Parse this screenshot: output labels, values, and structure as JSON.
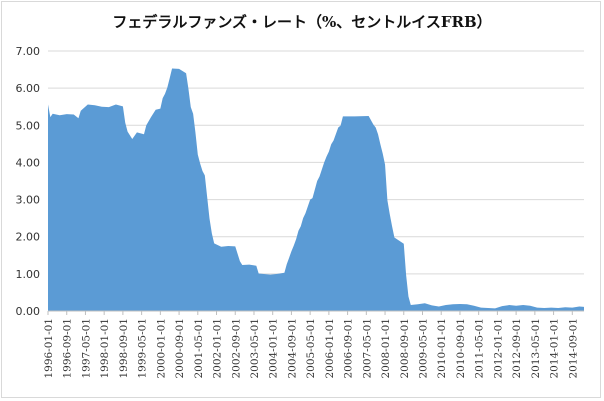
{
  "chart_data": {
    "type": "area",
    "title": "フェデラルファンズ・レート（%、セントルイスFRB）",
    "xlabel": "",
    "ylabel": "",
    "ylim": [
      0,
      7
    ],
    "xlim": [
      "1996-01",
      "2015-02"
    ],
    "grid": true,
    "legend": "none",
    "colors": {
      "area": "#5b9bd5",
      "grid": "#d9d9d9",
      "axis": "#bfbfbf"
    },
    "y_ticks": [
      "0.00",
      "1.00",
      "2.00",
      "3.00",
      "4.00",
      "5.00",
      "6.00",
      "7.00"
    ],
    "x_ticks": [
      "1996-01-01",
      "1996-09-01",
      "1997-05-01",
      "1998-01-01",
      "1998-09-01",
      "1999-05-01",
      "2000-01-01",
      "2000-09-01",
      "2001-05-01",
      "2002-01-01",
      "2002-09-01",
      "2003-05-01",
      "2004-01-01",
      "2004-09-01",
      "2005-05-01",
      "2006-01-01",
      "2006-09-01",
      "2007-05-01",
      "2008-01-01",
      "2008-09-01",
      "2009-05-01",
      "2010-01-01",
      "2010-09-01",
      "2011-05-01",
      "2012-01-01",
      "2012-09-01",
      "2013-05-01",
      "2014-01-01",
      "2014-09-01"
    ],
    "series": [
      {
        "x": [
          "1996-01",
          "1996-02",
          "1996-03",
          "1996-06",
          "1996-09",
          "1996-12",
          "1997-02",
          "1997-03",
          "1997-06",
          "1997-09",
          "1997-12",
          "1998-03",
          "1998-06",
          "1998-09",
          "1998-10",
          "1998-11",
          "1999-01",
          "1999-03",
          "1999-06",
          "1999-07",
          "1999-09",
          "1999-11",
          "2000-01",
          "2000-02",
          "2000-03",
          "2000-04",
          "2000-05",
          "2000-06",
          "2000-09",
          "2000-12",
          "2001-01",
          "2001-02",
          "2001-03",
          "2001-04",
          "2001-05",
          "2001-06",
          "2001-07",
          "2001-08",
          "2001-09",
          "2001-10",
          "2001-11",
          "2001-12",
          "2002-03",
          "2002-06",
          "2002-09",
          "2002-11",
          "2002-12",
          "2003-03",
          "2003-06",
          "2003-07",
          "2003-12",
          "2004-03",
          "2004-06",
          "2004-07",
          "2004-08",
          "2004-09",
          "2004-10",
          "2004-11",
          "2004-12",
          "2005-01",
          "2005-02",
          "2005-03",
          "2005-05",
          "2005-06",
          "2005-08",
          "2005-09",
          "2005-11",
          "2005-12",
          "2006-01",
          "2006-02",
          "2006-03",
          "2006-05",
          "2006-06",
          "2006-07",
          "2006-12",
          "2007-06",
          "2007-08",
          "2007-09",
          "2007-10",
          "2007-11",
          "2007-12",
          "2008-01",
          "2008-02",
          "2008-03",
          "2008-04",
          "2008-05",
          "2008-09",
          "2008-10",
          "2008-11",
          "2008-12",
          "2009-03",
          "2009-06",
          "2009-09",
          "2009-12",
          "2010-03",
          "2010-06",
          "2010-09",
          "2010-12",
          "2011-03",
          "2011-06",
          "2011-09",
          "2011-12",
          "2012-03",
          "2012-06",
          "2012-09",
          "2012-12",
          "2013-03",
          "2013-06",
          "2013-09",
          "2013-12",
          "2014-03",
          "2014-06",
          "2014-09",
          "2014-12",
          "2015-02"
        ],
        "y": [
          5.56,
          5.22,
          5.31,
          5.27,
          5.3,
          5.29,
          5.19,
          5.39,
          5.56,
          5.54,
          5.5,
          5.49,
          5.56,
          5.51,
          5.07,
          4.83,
          4.63,
          4.81,
          4.76,
          5.0,
          5.22,
          5.42,
          5.45,
          5.73,
          5.85,
          6.02,
          6.27,
          6.53,
          6.52,
          6.4,
          5.98,
          5.49,
          5.31,
          4.8,
          4.21,
          3.97,
          3.77,
          3.65,
          3.07,
          2.49,
          2.09,
          1.82,
          1.73,
          1.75,
          1.74,
          1.34,
          1.24,
          1.25,
          1.22,
          1.01,
          0.98,
          1.0,
          1.03,
          1.26,
          1.43,
          1.61,
          1.76,
          1.93,
          2.16,
          2.28,
          2.5,
          2.63,
          3.0,
          3.04,
          3.5,
          3.62,
          4.0,
          4.16,
          4.29,
          4.49,
          4.59,
          4.94,
          4.99,
          5.24,
          5.24,
          5.25,
          5.02,
          4.94,
          4.76,
          4.49,
          4.24,
          3.94,
          2.98,
          2.61,
          2.28,
          1.98,
          1.81,
          0.97,
          0.39,
          0.16,
          0.18,
          0.21,
          0.15,
          0.12,
          0.16,
          0.18,
          0.19,
          0.18,
          0.14,
          0.09,
          0.08,
          0.07,
          0.13,
          0.16,
          0.14,
          0.16,
          0.14,
          0.09,
          0.08,
          0.09,
          0.08,
          0.1,
          0.09,
          0.12,
          0.11
        ]
      }
    ]
  }
}
